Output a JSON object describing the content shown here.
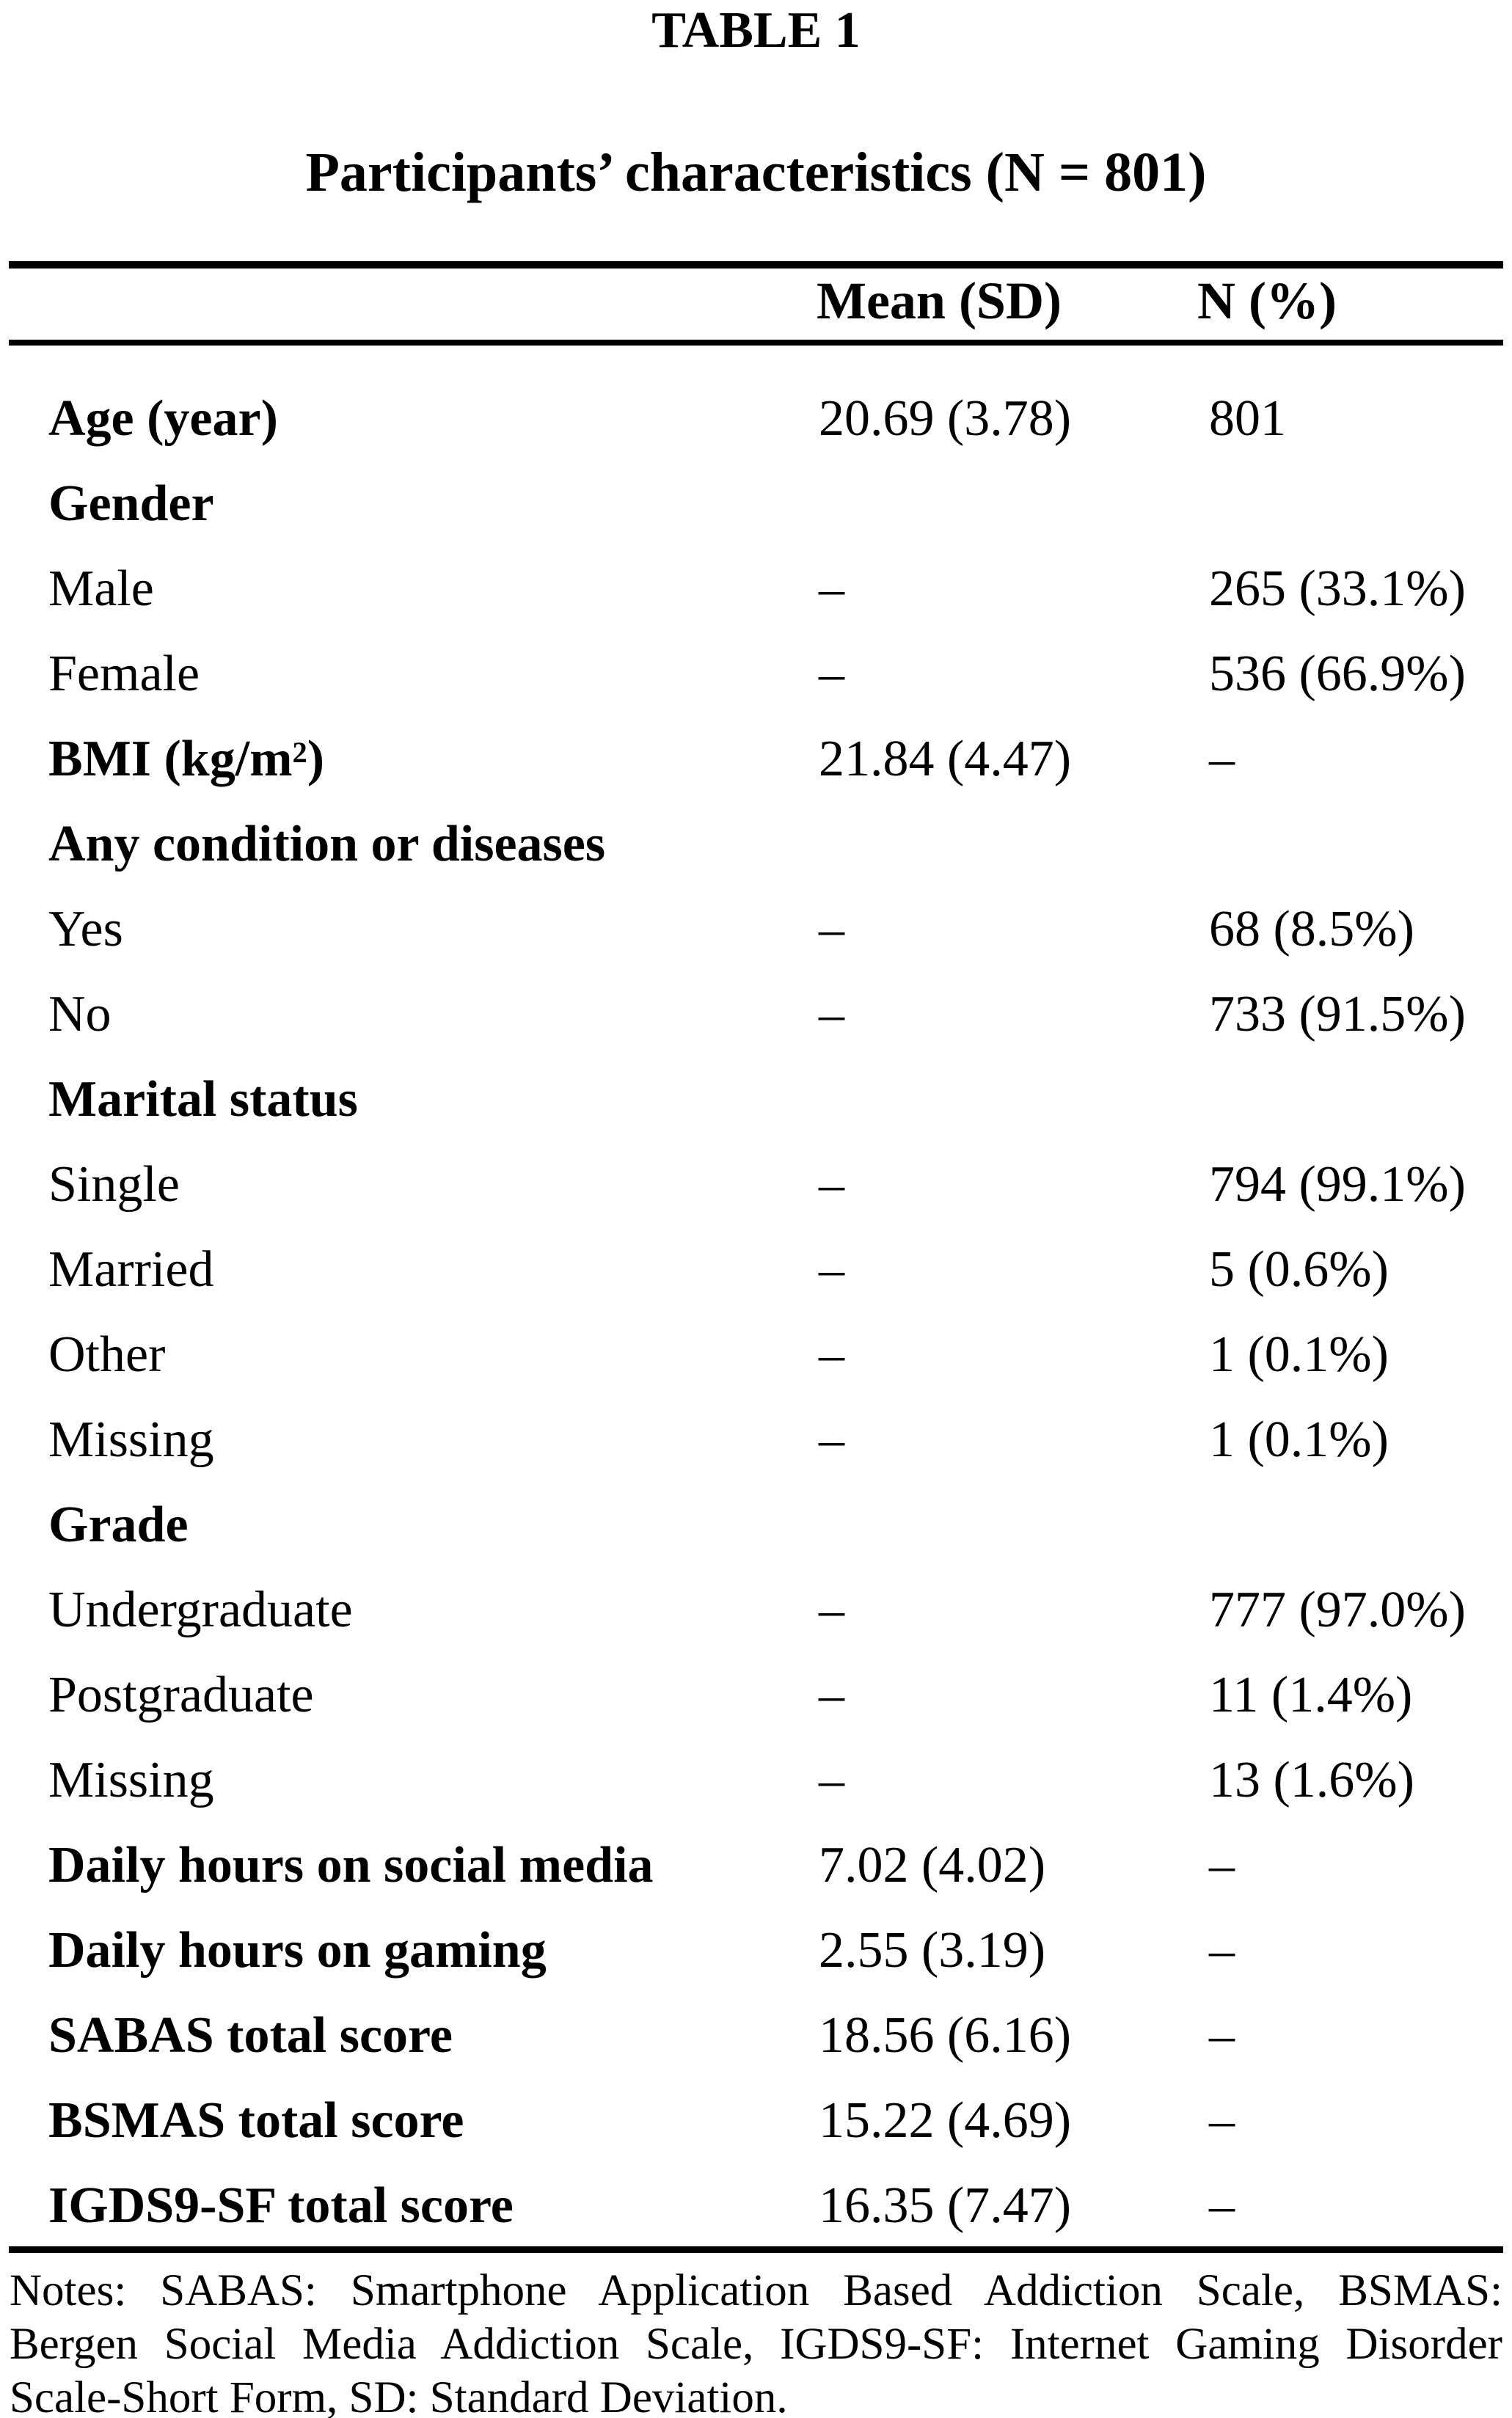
{
  "colors": {
    "ink": "#000000",
    "paper": "#ffffff"
  },
  "table": {
    "title": "TABLE 1",
    "subtitle": "Participants’ characteristics (N = 801)",
    "columns": {
      "mean": "Mean (SD)",
      "n": "N (%)"
    },
    "rows": [
      {
        "label": "Age (year)",
        "bold": true,
        "mean": "20.69 (3.78)",
        "n": "801"
      },
      {
        "label": "Gender",
        "bold": true,
        "mean": "",
        "n": ""
      },
      {
        "label": "Male",
        "bold": false,
        "mean": "–",
        "n": "265 (33.1%)"
      },
      {
        "label": "Female",
        "bold": false,
        "mean": "–",
        "n": "536 (66.9%)"
      },
      {
        "label": "BMI (kg/m",
        "label_sup": "2",
        "label_after": ")",
        "bold": true,
        "mean": "21.84 (4.47)",
        "n": "–"
      },
      {
        "label": "Any condition or diseases",
        "bold": true,
        "mean": "",
        "n": ""
      },
      {
        "label": "Yes",
        "bold": false,
        "mean": "–",
        "n": "68 (8.5%)"
      },
      {
        "label": "No",
        "bold": false,
        "mean": "–",
        "n": "733 (91.5%)"
      },
      {
        "label": "Marital status",
        "bold": true,
        "mean": "",
        "n": ""
      },
      {
        "label": "Single",
        "bold": false,
        "mean": "–",
        "n": "794 (99.1%)"
      },
      {
        "label": "Married",
        "bold": false,
        "mean": "–",
        "n": "5 (0.6%)"
      },
      {
        "label": "Other",
        "bold": false,
        "mean": "–",
        "n": "1 (0.1%)"
      },
      {
        "label": "Missing",
        "bold": false,
        "mean": "–",
        "n": "1 (0.1%)"
      },
      {
        "label": "Grade",
        "bold": true,
        "mean": "",
        "n": ""
      },
      {
        "label": "Undergraduate",
        "bold": false,
        "mean": "–",
        "n": "777 (97.0%)"
      },
      {
        "label": "Postgraduate",
        "bold": false,
        "mean": "–",
        "n": "11 (1.4%)"
      },
      {
        "label": "Missing",
        "bold": false,
        "mean": "–",
        "n": "13 (1.6%)"
      },
      {
        "label": "Daily hours on social media",
        "bold": true,
        "mean": "7.02 (4.02)",
        "n": "–"
      },
      {
        "label": "Daily hours on gaming",
        "bold": true,
        "mean": "2.55 (3.19)",
        "n": "–"
      },
      {
        "label": "SABAS total score",
        "bold": true,
        "mean": "18.56 (6.16)",
        "n": "–"
      },
      {
        "label": "BSMAS total score",
        "bold": true,
        "mean": "15.22 (4.69)",
        "n": "–"
      },
      {
        "label": "IGDS9-SF total score",
        "bold": true,
        "mean": "16.35 (7.47)",
        "n": "–"
      }
    ],
    "notes_lines": [
      "Notes: SABAS: Smartphone Application Based Addiction Scale, BSMAS:",
      "Bergen Social Media Addiction Scale, IGDS9-SF: Internet Gaming Disorder",
      "Scale-Short Form, SD: Standard Deviation."
    ]
  }
}
